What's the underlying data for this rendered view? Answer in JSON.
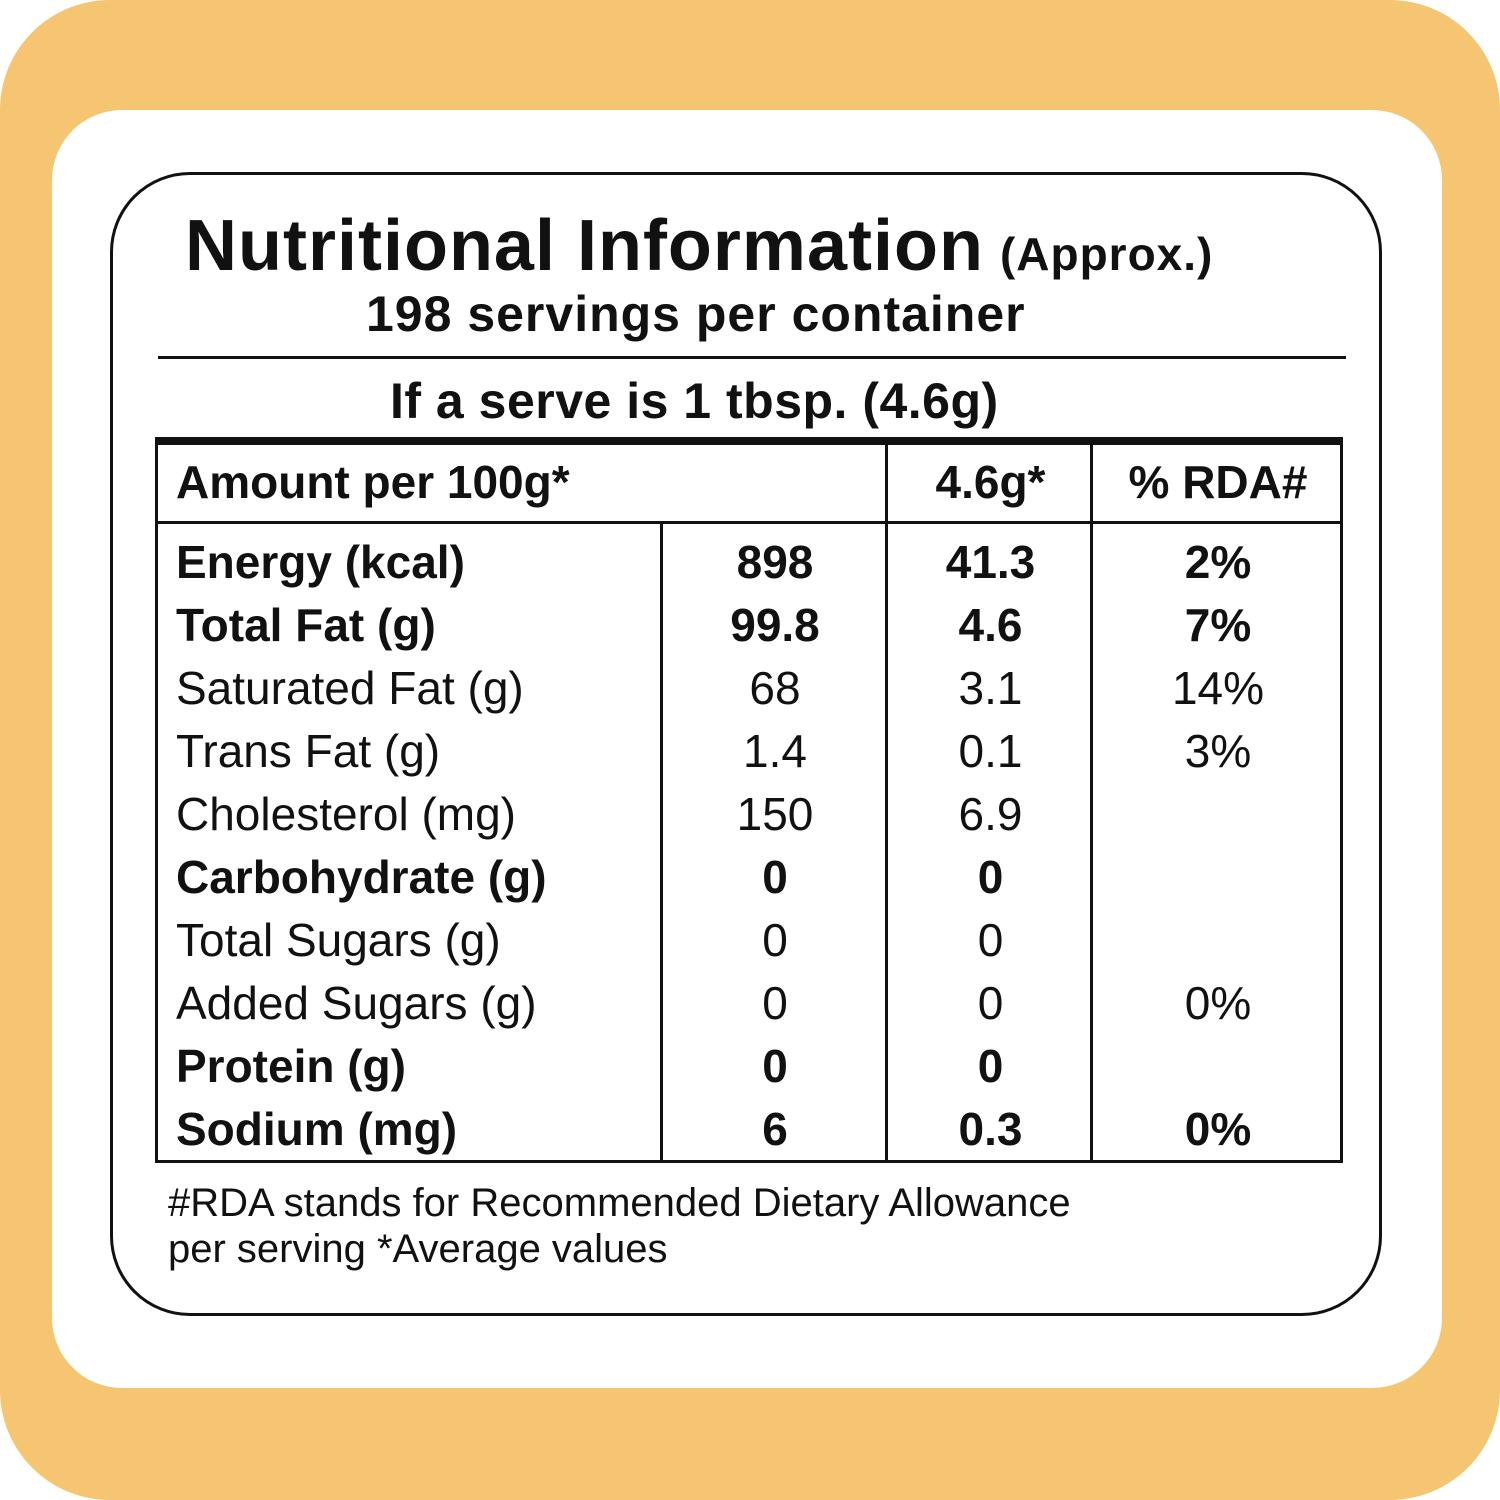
{
  "label": {
    "title": "Nutritional Information",
    "title_suffix": "(Approx.)",
    "servings": "198 servings per container",
    "serve_size": "If a serve is 1 tbsp. (4.6g)",
    "header": {
      "amount": "Amount per 100g*",
      "per_serve": "4.6g*",
      "rda": "% RDA#"
    },
    "rows": [
      {
        "name": "Energy (kcal)",
        "per100": "898",
        "perServe": "41.3",
        "rda": "2%",
        "bold": true
      },
      {
        "name": "Total Fat (g)",
        "per100": "99.8",
        "perServe": "4.6",
        "rda": "7%",
        "bold": true
      },
      {
        "name": "Saturated Fat (g)",
        "per100": "68",
        "perServe": "3.1",
        "rda": "14%",
        "bold": false
      },
      {
        "name": "Trans Fat (g)",
        "per100": "1.4",
        "perServe": "0.1",
        "rda": "3%",
        "bold": false
      },
      {
        "name": "Cholesterol (mg)",
        "per100": "150",
        "perServe": "6.9",
        "rda": "",
        "bold": false
      },
      {
        "name": "Carbohydrate (g)",
        "per100": "0",
        "perServe": "0",
        "rda": "",
        "bold": true
      },
      {
        "name": "Total Sugars (g)",
        "per100": "0",
        "perServe": "0",
        "rda": "",
        "bold": false
      },
      {
        "name": "Added Sugars (g)",
        "per100": "0",
        "perServe": "0",
        "rda": "0%",
        "bold": false
      },
      {
        "name": "Protein (g)",
        "per100": "0",
        "perServe": "0",
        "rda": "",
        "bold": true
      },
      {
        "name": "Sodium (mg)",
        "per100": "6",
        "perServe": "0.3",
        "rda": "0%",
        "bold": true
      }
    ],
    "footnote_line1": "#RDA stands for Recommended Dietary Allowance",
    "footnote_line2": "per serving *Average values"
  },
  "colors": {
    "frame": "#f5c572",
    "ink": "#111111",
    "background": "#ffffff"
  }
}
